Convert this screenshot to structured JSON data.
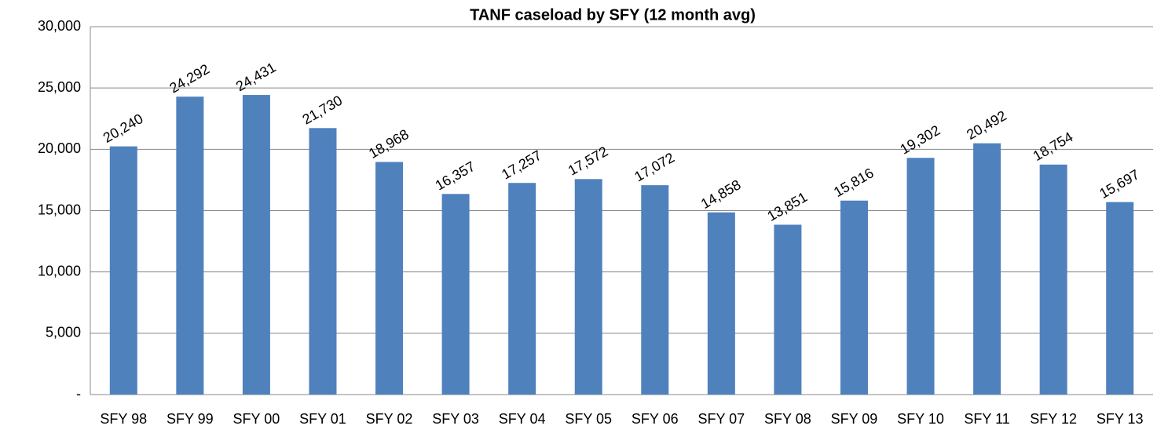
{
  "chart_data": {
    "type": "bar",
    "title": "TANF caseload by SFY (12 month avg)",
    "categories": [
      "SFY 98",
      "SFY 99",
      "SFY 00",
      "SFY 01",
      "SFY 02",
      "SFY 03",
      "SFY 04",
      "SFY 05",
      "SFY 06",
      "SFY 07",
      "SFY 08",
      "SFY 09",
      "SFY 10",
      "SFY 11",
      "SFY 12",
      "SFY 13"
    ],
    "values": [
      20240,
      24292,
      24431,
      21730,
      18968,
      16357,
      17257,
      17572,
      17072,
      14858,
      13851,
      15816,
      19302,
      20492,
      18754,
      15697
    ],
    "value_labels": [
      "20,240",
      "24,292",
      "24,431",
      "21,730",
      "18,968",
      "16,357",
      "17,257",
      "17,572",
      "17,072",
      "14,858",
      "13,851",
      "15,816",
      "19,302",
      "20,492",
      "18,754",
      "15,697"
    ],
    "color": "#4f81bd",
    "ylim": [
      0,
      30000
    ],
    "yticks": [
      {
        "value": 0,
        "label": "-"
      },
      {
        "value": 5000,
        "label": "5,000"
      },
      {
        "value": 10000,
        "label": "10,000"
      },
      {
        "value": 15000,
        "label": "15,000"
      },
      {
        "value": 20000,
        "label": "20,000"
      },
      {
        "value": 25000,
        "label": "25,000"
      },
      {
        "value": 30000,
        "label": "30,000"
      }
    ],
    "grid": true
  }
}
